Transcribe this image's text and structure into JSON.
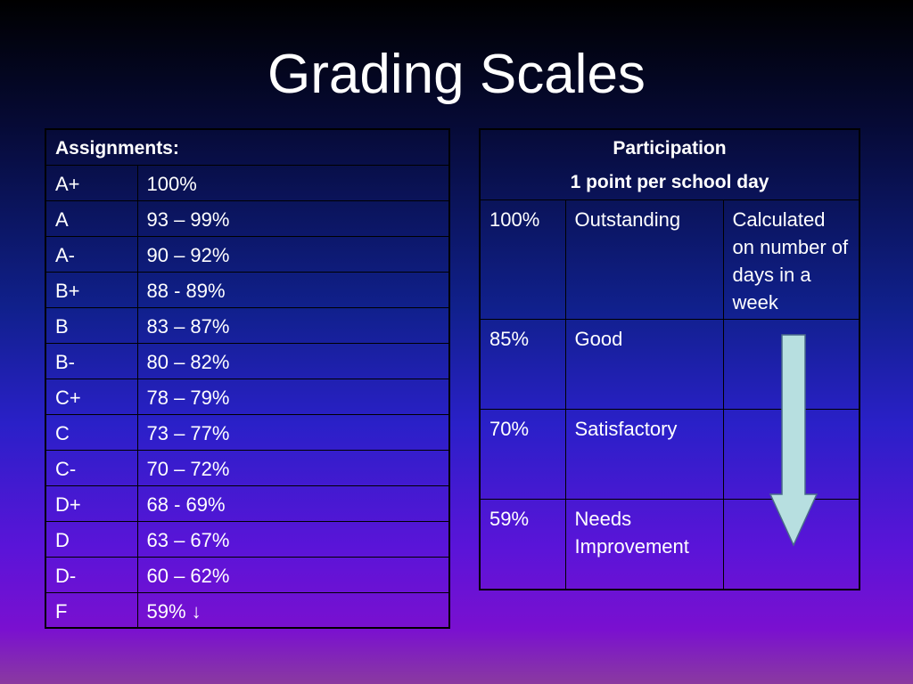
{
  "slide": {
    "title": "Grading Scales"
  },
  "assignments": {
    "header": "Assignments:",
    "rows": [
      {
        "grade": "A+",
        "range": "100%"
      },
      {
        "grade": "A",
        "range": "93 – 99%"
      },
      {
        "grade": "A-",
        "range": "90 – 92%"
      },
      {
        "grade": "B+",
        "range": "88 - 89%"
      },
      {
        "grade": "B",
        "range": "83 – 87%"
      },
      {
        "grade": "B-",
        "range": "80 – 82%"
      },
      {
        "grade": "C+",
        "range": "78 – 79%"
      },
      {
        "grade": "C",
        "range": "73 – 77%"
      },
      {
        "grade": "C-",
        "range": "70 – 72%"
      },
      {
        "grade": "D+",
        "range": "68 - 69%"
      },
      {
        "grade": "D",
        "range": "63 – 67%"
      },
      {
        "grade": "D-",
        "range": "60 – 62%"
      },
      {
        "grade": "F",
        "range": "59% ↓"
      }
    ]
  },
  "participation": {
    "header_line1": "Participation",
    "header_line2": "1 point per school day",
    "note": "Calculated on number of days in a week",
    "rows": [
      {
        "percent": "100%",
        "label": "Outstanding"
      },
      {
        "percent": "85%",
        "label": "Good"
      },
      {
        "percent": "70%",
        "label": "Satisfactory"
      },
      {
        "percent": "59%",
        "label": "Needs Improvement"
      }
    ],
    "arrow_icon": "down-arrow-icon",
    "arrow_color": "#b7dfe0"
  }
}
